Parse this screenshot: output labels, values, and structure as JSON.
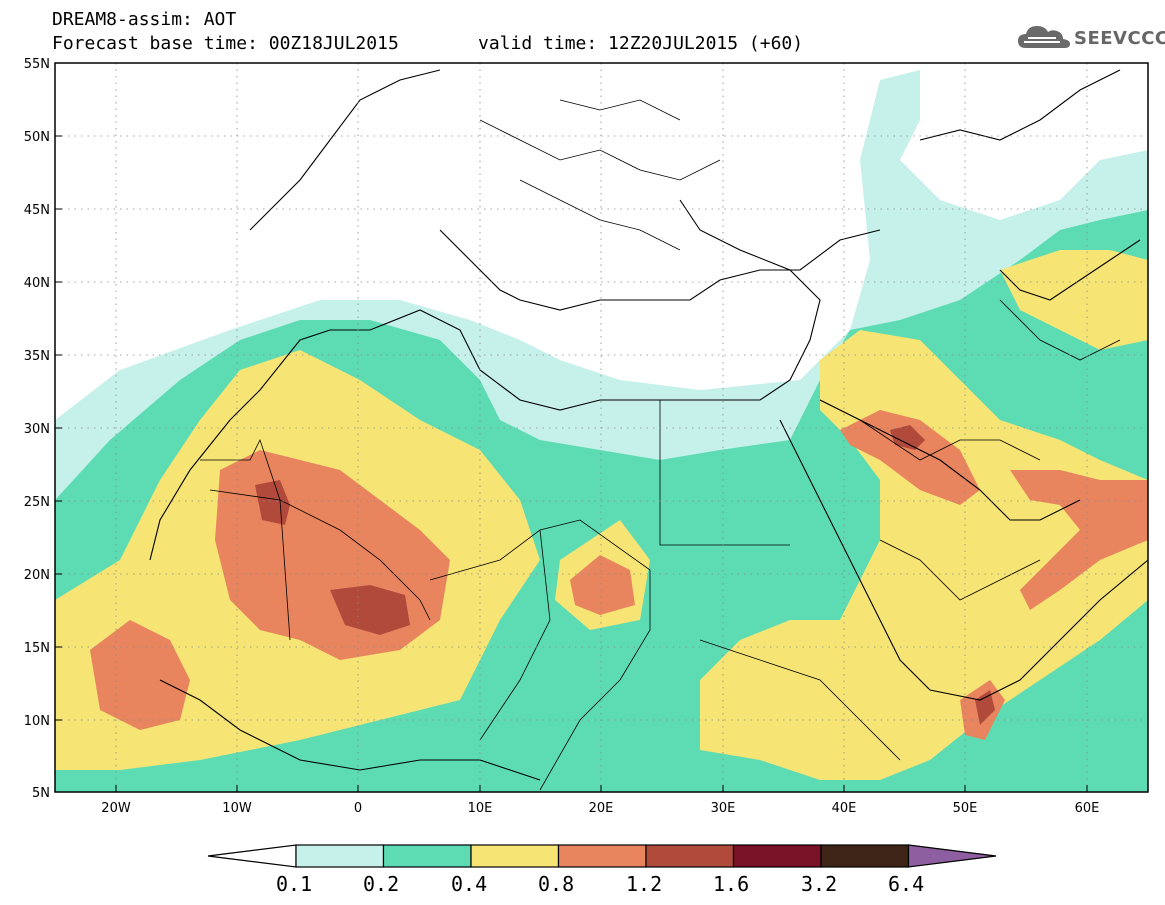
{
  "header": {
    "title": "DREAM8-assim: AOT",
    "forecast_base": "Forecast base time: 00Z18JUL2015",
    "valid_time": "valid time: 12Z20JUL2015 (+60)",
    "logo_text": "SEEVCCC"
  },
  "map": {
    "lat_labels": [
      "55N",
      "50N",
      "45N",
      "40N",
      "35N",
      "30N",
      "25N",
      "20N",
      "15N",
      "10N",
      "5N"
    ],
    "lon_labels": [
      "20W",
      "10W",
      "0",
      "10E",
      "20E",
      "30E",
      "40E",
      "50E",
      "60E"
    ],
    "lon_range": [
      -25,
      65
    ],
    "lat_range": [
      5,
      55
    ]
  },
  "legend": {
    "levels": [
      "0.1",
      "0.2",
      "0.4",
      "0.8",
      "1.2",
      "1.6",
      "3.2",
      "6.4"
    ],
    "colors": [
      "#ffffff",
      "#c6f0ea",
      "#5ddcb4",
      "#f6e474",
      "#e8855f",
      "#b24a3c",
      "#7a1228",
      "#3d2416",
      "#8e5fa0"
    ]
  }
}
